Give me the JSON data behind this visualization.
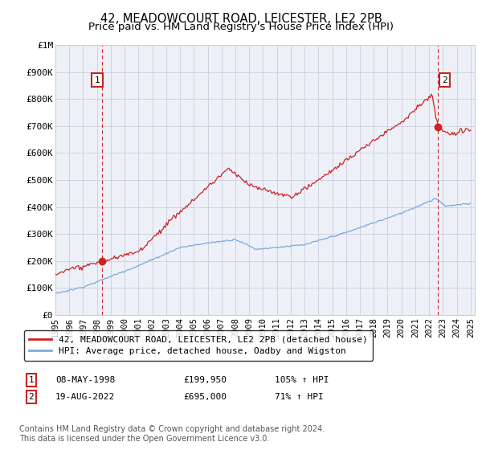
{
  "title": "42, MEADOWCOURT ROAD, LEICESTER, LE2 2PB",
  "subtitle": "Price paid vs. HM Land Registry's House Price Index (HPI)",
  "ylim": [
    0,
    1000000
  ],
  "ytick_labels": [
    "£0",
    "£100K",
    "£200K",
    "£300K",
    "£400K",
    "£500K",
    "£600K",
    "£700K",
    "£800K",
    "£900K",
    "£1M"
  ],
  "x_start_year": 1995,
  "x_end_year": 2025,
  "sale1_date": 1998.37,
  "sale1_price": 199950,
  "sale1_label": "1",
  "sale1_hpi_pct": "105%",
  "sale1_date_str": "08-MAY-1998",
  "sale1_price_str": "£199,950",
  "sale2_date": 2022.63,
  "sale2_price": 695000,
  "sale2_label": "2",
  "sale2_hpi_pct": "71%",
  "sale2_date_str": "19-AUG-2022",
  "sale2_price_str": "£695,000",
  "red_line_color": "#cc2222",
  "blue_line_color": "#7aaadd",
  "marker_box_color": "#cc2222",
  "dashed_line_color": "#cc2222",
  "grid_color": "#ccccdd",
  "bg_color": "#ffffff",
  "chart_bg_color": "#eef0f8",
  "legend_label_red": "42, MEADOWCOURT ROAD, LEICESTER, LE2 2PB (detached house)",
  "legend_label_blue": "HPI: Average price, detached house, Oadby and Wigston",
  "footnote": "Contains HM Land Registry data © Crown copyright and database right 2024.\nThis data is licensed under the Open Government Licence v3.0.",
  "title_fontsize": 10.5,
  "subtitle_fontsize": 9.5,
  "tick_fontsize": 8,
  "legend_fontsize": 8,
  "footnote_fontsize": 7
}
